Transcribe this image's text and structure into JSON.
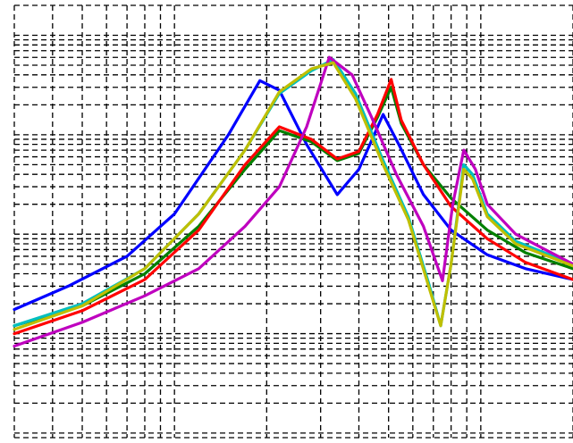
{
  "chart_data": {
    "type": "line",
    "title": "",
    "xlabel": "",
    "ylabel": "",
    "x_scale": "log",
    "y_scale": "log",
    "xlim": [
      0.3,
      20
    ],
    "ylim": [
      0.0009,
      20
    ],
    "grid": true,
    "legend": "none",
    "series": [
      {
        "color": "#0000ff",
        "points": [
          [
            0.3,
            0.0175
          ],
          [
            0.45,
            0.03
          ],
          [
            0.7,
            0.06
          ],
          [
            1.0,
            0.16
          ],
          [
            1.5,
            1.0
          ],
          [
            1.9,
            3.5
          ],
          [
            2.2,
            2.8
          ],
          [
            2.7,
            0.8
          ],
          [
            3.4,
            0.25
          ],
          [
            4.0,
            0.45
          ],
          [
            4.8,
            1.6
          ],
          [
            5.4,
            0.8
          ],
          [
            6.5,
            0.25
          ],
          [
            8.0,
            0.11
          ],
          [
            10.5,
            0.062
          ],
          [
            14.0,
            0.045
          ],
          [
            20.0,
            0.035
          ]
        ]
      },
      {
        "color": "#008000",
        "points": [
          [
            0.3,
            0.012
          ],
          [
            0.5,
            0.019
          ],
          [
            0.8,
            0.04
          ],
          [
            1.2,
            0.12
          ],
          [
            1.7,
            0.45
          ],
          [
            2.2,
            1.1
          ],
          [
            2.8,
            0.85
          ],
          [
            3.4,
            0.55
          ],
          [
            4.0,
            0.65
          ],
          [
            4.6,
            1.5
          ],
          [
            5.1,
            3.0
          ],
          [
            5.5,
            1.3
          ],
          [
            6.5,
            0.5
          ],
          [
            8.0,
            0.23
          ],
          [
            10.5,
            0.11
          ],
          [
            14.0,
            0.065
          ],
          [
            20.0,
            0.045
          ]
        ]
      },
      {
        "color": "#ff0000",
        "points": [
          [
            0.3,
            0.01
          ],
          [
            0.5,
            0.017
          ],
          [
            0.8,
            0.035
          ],
          [
            1.2,
            0.11
          ],
          [
            1.7,
            0.5
          ],
          [
            2.2,
            1.2
          ],
          [
            2.8,
            0.9
          ],
          [
            3.4,
            0.57
          ],
          [
            4.0,
            0.68
          ],
          [
            4.6,
            1.6
          ],
          [
            5.1,
            3.6
          ],
          [
            5.5,
            1.4
          ],
          [
            6.5,
            0.5
          ],
          [
            8.0,
            0.19
          ],
          [
            10.5,
            0.09
          ],
          [
            14.0,
            0.052
          ],
          [
            20.0,
            0.035
          ]
        ]
      },
      {
        "color": "#00bfbf",
        "points": [
          [
            0.3,
            0.012
          ],
          [
            0.5,
            0.02
          ],
          [
            0.8,
            0.045
          ],
          [
            1.2,
            0.16
          ],
          [
            1.7,
            0.7
          ],
          [
            2.2,
            2.6
          ],
          [
            2.8,
            4.4
          ],
          [
            3.3,
            5.7
          ],
          [
            3.9,
            2.6
          ],
          [
            4.8,
            0.55
          ],
          [
            5.8,
            0.15
          ],
          [
            6.8,
            0.03
          ],
          [
            7.4,
            0.012
          ],
          [
            8.0,
            0.05
          ],
          [
            8.8,
            0.5
          ],
          [
            9.4,
            0.4
          ],
          [
            10.5,
            0.16
          ],
          [
            13.0,
            0.085
          ],
          [
            20.0,
            0.05
          ]
        ]
      },
      {
        "color": "#bf00bf",
        "points": [
          [
            0.3,
            0.0075
          ],
          [
            0.5,
            0.013
          ],
          [
            0.8,
            0.024
          ],
          [
            1.2,
            0.045
          ],
          [
            1.7,
            0.12
          ],
          [
            2.2,
            0.3
          ],
          [
            2.7,
            1.2
          ],
          [
            3.2,
            6.0
          ],
          [
            3.8,
            4.0
          ],
          [
            4.4,
            1.5
          ],
          [
            5.3,
            0.4
          ],
          [
            6.5,
            0.12
          ],
          [
            7.5,
            0.034
          ],
          [
            8.1,
            0.2
          ],
          [
            8.8,
            0.7
          ],
          [
            9.6,
            0.45
          ],
          [
            10.5,
            0.2
          ],
          [
            13.0,
            0.1
          ],
          [
            20.0,
            0.05
          ]
        ]
      },
      {
        "color": "#bfbf00",
        "points": [
          [
            0.3,
            0.011
          ],
          [
            0.5,
            0.019
          ],
          [
            0.8,
            0.045
          ],
          [
            1.2,
            0.16
          ],
          [
            1.7,
            0.7
          ],
          [
            2.2,
            2.7
          ],
          [
            2.8,
            4.6
          ],
          [
            3.3,
            5.3
          ],
          [
            3.9,
            2.3
          ],
          [
            4.8,
            0.5
          ],
          [
            5.8,
            0.14
          ],
          [
            6.8,
            0.028
          ],
          [
            7.4,
            0.012
          ],
          [
            8.0,
            0.05
          ],
          [
            8.8,
            0.45
          ],
          [
            9.4,
            0.36
          ],
          [
            10.5,
            0.15
          ],
          [
            13.0,
            0.08
          ],
          [
            20.0,
            0.048
          ]
        ]
      }
    ]
  }
}
